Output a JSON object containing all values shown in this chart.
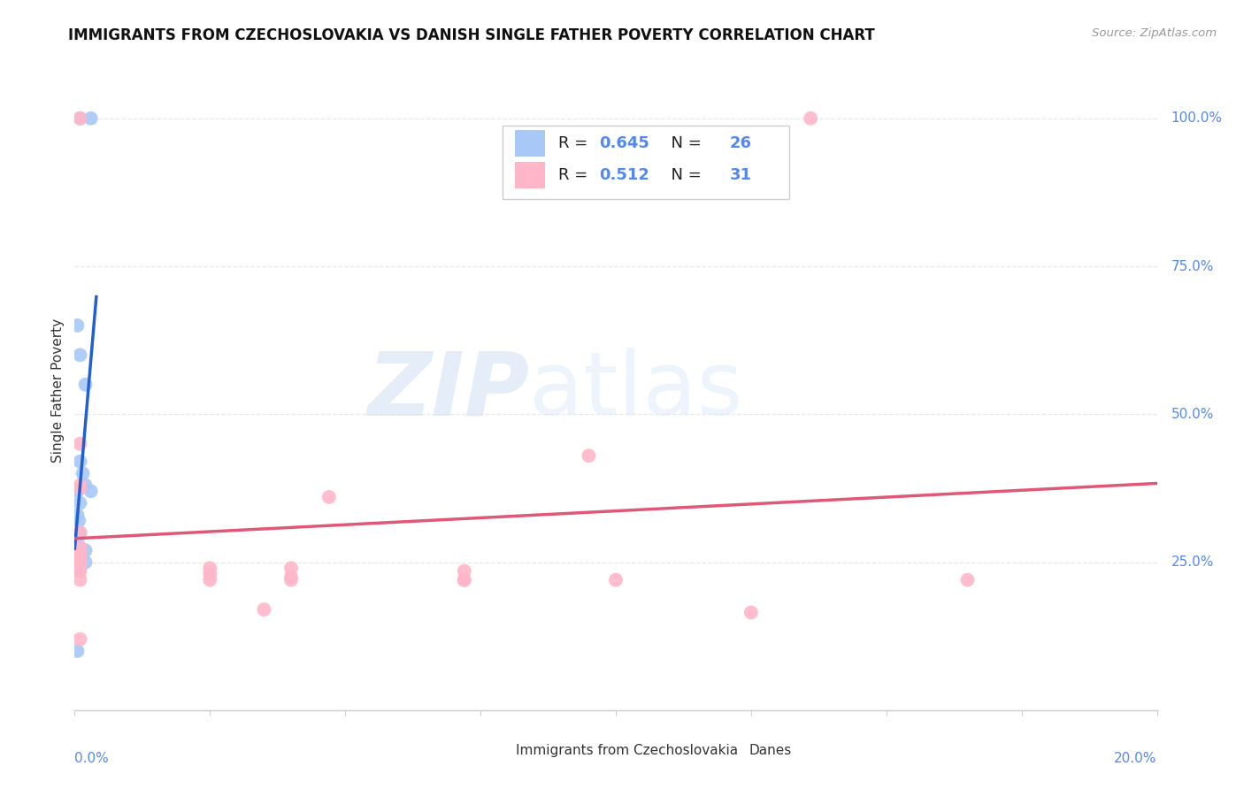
{
  "title": "IMMIGRANTS FROM CZECHOSLOVAKIA VS DANISH SINGLE FATHER POVERTY CORRELATION CHART",
  "source": "Source: ZipAtlas.com",
  "ylabel": "Single Father Poverty",
  "right_yticks": [
    "100.0%",
    "75.0%",
    "50.0%",
    "25.0%"
  ],
  "right_ytick_vals": [
    1.0,
    0.75,
    0.5,
    0.25
  ],
  "blue_R": 0.645,
  "blue_N": 26,
  "pink_R": 0.512,
  "pink_N": 31,
  "blue_color": "#a8c8f8",
  "pink_color": "#ffb6c8",
  "blue_line_color": "#2060d0",
  "pink_line_color": "#e05878",
  "blue_scatter_x": [
    0.001,
    0.003,
    0.0005,
    0.001,
    0.002,
    0.001,
    0.0015,
    0.002,
    0.0005,
    0.001,
    0.0005,
    0.0008,
    0.001,
    0.0005,
    0.0003,
    0.0002,
    0.0001,
    0.0002,
    0.0001,
    0.003,
    0.002,
    0.0005,
    0.001,
    0.002,
    0.001,
    0.0005
  ],
  "blue_scatter_y": [
    1.0,
    1.0,
    0.65,
    0.6,
    0.55,
    0.42,
    0.4,
    0.38,
    0.37,
    0.35,
    0.33,
    0.32,
    0.3,
    0.285,
    0.275,
    0.265,
    0.255,
    0.245,
    0.235,
    0.37,
    0.27,
    0.265,
    0.255,
    0.25,
    0.24,
    0.1
  ],
  "pink_scatter_x": [
    0.001,
    0.136,
    0.095,
    0.047,
    0.001,
    0.001,
    0.001,
    0.001,
    0.001,
    0.025,
    0.04,
    0.072,
    0.001,
    0.025,
    0.04,
    0.072,
    0.001,
    0.001,
    0.001,
    0.001,
    0.001,
    0.001,
    0.001,
    0.025,
    0.04,
    0.072,
    0.1,
    0.035,
    0.125,
    0.001,
    0.165
  ],
  "pink_scatter_y": [
    1.0,
    1.0,
    0.43,
    0.36,
    0.45,
    0.38,
    0.375,
    0.3,
    0.275,
    0.24,
    0.24,
    0.235,
    0.27,
    0.23,
    0.225,
    0.22,
    0.265,
    0.26,
    0.255,
    0.25,
    0.245,
    0.235,
    0.22,
    0.22,
    0.22,
    0.22,
    0.22,
    0.17,
    0.165,
    0.12,
    0.22
  ],
  "xlim": [
    0.0,
    0.2
  ],
  "ylim": [
    0.0,
    1.08
  ],
  "watermark_zip": "ZIP",
  "watermark_atlas": "atlas",
  "background_color": "#ffffff",
  "grid_color": "#e8e8e8",
  "spine_color": "#cccccc",
  "title_fontsize": 12,
  "axis_label_color": "#5588ee",
  "text_color": "#333333"
}
